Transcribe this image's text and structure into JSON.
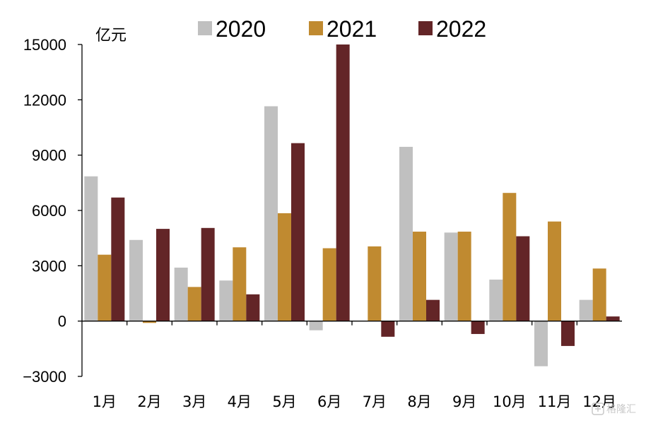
{
  "chart_data": {
    "type": "bar",
    "unit_label": "亿元",
    "categories": [
      "1月",
      "2月",
      "3月",
      "4月",
      "5月",
      "6月",
      "7月",
      "8月",
      "9月",
      "10月",
      "11月",
      "12月"
    ],
    "series": [
      {
        "name": "2020",
        "color": "#c0c0c0",
        "values": [
          7850,
          4400,
          2900,
          2200,
          11650,
          -500,
          null,
          9450,
          4800,
          2250,
          -2450,
          1150
        ]
      },
      {
        "name": "2021",
        "color": "#c08a30",
        "values": [
          3600,
          -100,
          1850,
          4000,
          5850,
          3950,
          4050,
          4850,
          4850,
          6950,
          5400,
          2850
        ]
      },
      {
        "name": "2022",
        "color": "#632527",
        "values": [
          6700,
          5000,
          5050,
          1450,
          9650,
          15000,
          -850,
          1150,
          -700,
          4600,
          -1350,
          250
        ]
      }
    ],
    "yticks": [
      "15000",
      "12000",
      "9000",
      "6000",
      "3000",
      "0",
      "−3000"
    ],
    "ylim": [
      -3000,
      15000
    ],
    "legend_position": "top"
  },
  "watermark": "格隆汇"
}
